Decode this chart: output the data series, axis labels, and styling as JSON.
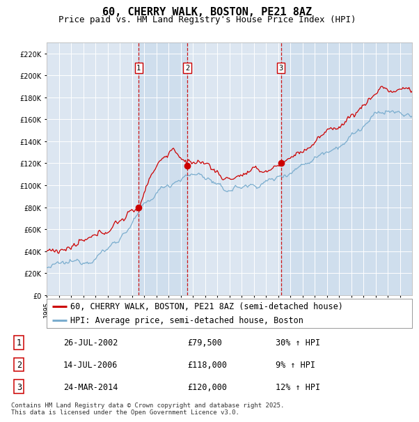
{
  "title": "60, CHERRY WALK, BOSTON, PE21 8AZ",
  "subtitle": "Price paid vs. HM Land Registry's House Price Index (HPI)",
  "ylim": [
    0,
    230000
  ],
  "yticks": [
    0,
    20000,
    40000,
    60000,
    80000,
    100000,
    120000,
    140000,
    160000,
    180000,
    200000,
    220000
  ],
  "xlim_start": 1995.0,
  "xlim_end": 2025.0,
  "sale_dates": [
    2002.56,
    2006.54,
    2014.23
  ],
  "sale_prices": [
    79500,
    118000,
    120000
  ],
  "sale_labels": [
    "1",
    "2",
    "3"
  ],
  "sale_date_labels": [
    "26-JUL-2002",
    "14-JUL-2006",
    "24-MAR-2014"
  ],
  "sale_price_labels": [
    "£79,500",
    "£118,000",
    "£120,000"
  ],
  "sale_hpi_labels": [
    "30% ↑ HPI",
    "9% ↑ HPI",
    "12% ↑ HPI"
  ],
  "red_line_color": "#cc0000",
  "blue_line_color": "#7aadce",
  "dashed_line_color": "#cc0000",
  "shade_color": "#c5d8ea",
  "plot_bg_color": "#dce6f1",
  "grid_color": "#ffffff",
  "legend_label_red": "60, CHERRY WALK, BOSTON, PE21 8AZ (semi-detached house)",
  "legend_label_blue": "HPI: Average price, semi-detached house, Boston",
  "footnote": "Contains HM Land Registry data © Crown copyright and database right 2025.\nThis data is licensed under the Open Government Licence v3.0.",
  "title_fontsize": 11,
  "subtitle_fontsize": 9,
  "tick_fontsize": 7,
  "legend_fontsize": 8.5,
  "table_fontsize": 8.5
}
